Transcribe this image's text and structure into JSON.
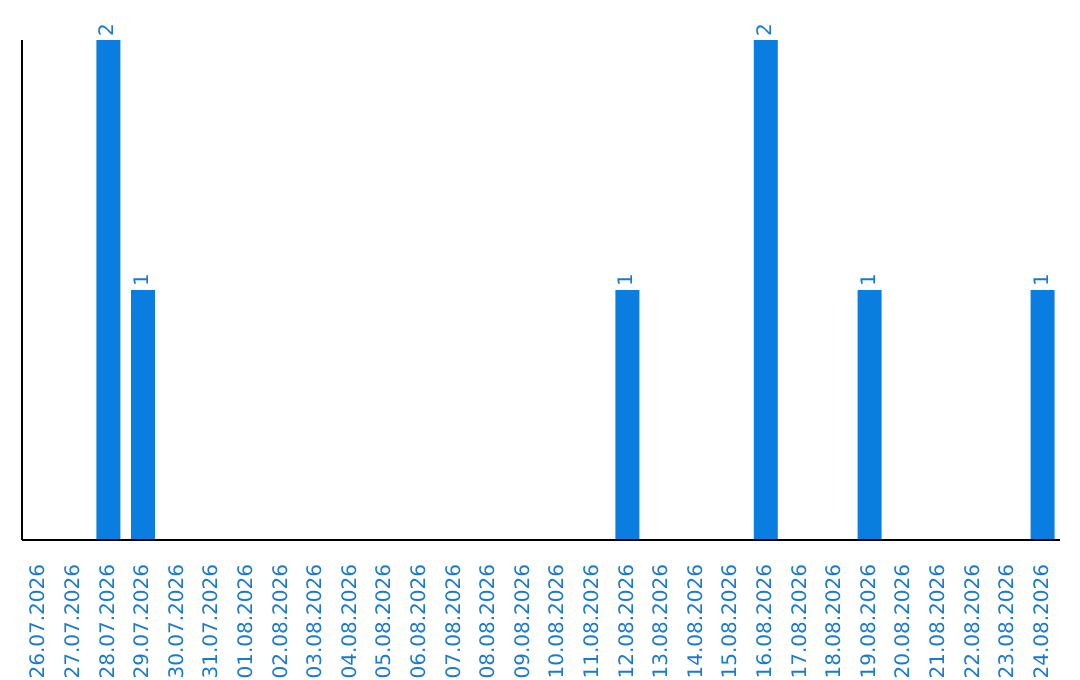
{
  "chart_data": {
    "type": "bar",
    "categories": [
      "26.07.2026",
      "27.07.2026",
      "28.07.2026",
      "29.07.2026",
      "30.07.2026",
      "31.07.2026",
      "01.08.2026",
      "02.08.2026",
      "03.08.2026",
      "04.08.2026",
      "05.08.2026",
      "06.08.2026",
      "07.08.2026",
      "08.08.2026",
      "09.08.2026",
      "10.08.2026",
      "11.08.2026",
      "12.08.2026",
      "13.08.2026",
      "14.08.2026",
      "15.08.2026",
      "16.08.2026",
      "17.08.2026",
      "18.08.2026",
      "19.08.2026",
      "20.08.2026",
      "21.08.2026",
      "22.08.2026",
      "23.08.2026",
      "24.08.2026"
    ],
    "values": [
      0,
      0,
      2,
      1,
      0,
      0,
      0,
      0,
      0,
      0,
      0,
      0,
      0,
      0,
      0,
      0,
      0,
      1,
      0,
      0,
      0,
      2,
      0,
      0,
      1,
      0,
      0,
      0,
      0,
      1
    ],
    "value_labels": [
      null,
      null,
      "2",
      "1",
      null,
      null,
      null,
      null,
      null,
      null,
      null,
      null,
      null,
      null,
      null,
      null,
      null,
      "1",
      null,
      null,
      null,
      "2",
      null,
      null,
      "1",
      null,
      null,
      null,
      null,
      "1"
    ],
    "color": "#0a7de0",
    "tick_labels": "x",
    "grid": false
  }
}
